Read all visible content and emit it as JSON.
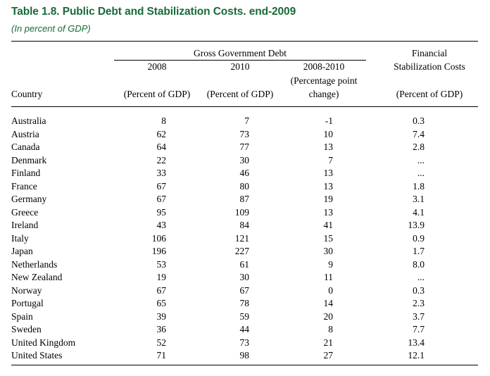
{
  "title": "Table 1.8. Public Debt and Stabilization Costs. end-2009",
  "subtitle": "(In percent of GDP)",
  "header": {
    "group_label": "Gross Government Debt",
    "financial_line1": "Financial",
    "financial_line2": "Stabilization Costs",
    "col_2008": "2008",
    "col_2010": "2010",
    "col_change": "2008-2010",
    "change_unit_line1": "(Percentage point",
    "change_unit_line2": "change)",
    "country_label": "Country",
    "unit_2008": "(Percent of GDP)",
    "unit_2010": "(Percent of GDP)",
    "unit_fin": "(Percent of GDP)"
  },
  "rows": [
    {
      "country": "Australia",
      "d2008": "8",
      "d2010": "7",
      "change": "-1",
      "fin": "0.3"
    },
    {
      "country": "Austria",
      "d2008": "62",
      "d2010": "73",
      "change": "10",
      "fin": "7.4"
    },
    {
      "country": "Canada",
      "d2008": "64",
      "d2010": "77",
      "change": "13",
      "fin": "2.8"
    },
    {
      "country": "Denmark",
      "d2008": "22",
      "d2010": "30",
      "change": "7",
      "fin": "..."
    },
    {
      "country": "Finland",
      "d2008": "33",
      "d2010": "46",
      "change": "13",
      "fin": "..."
    },
    {
      "country": "France",
      "d2008": "67",
      "d2010": "80",
      "change": "13",
      "fin": "1.8"
    },
    {
      "country": "Germany",
      "d2008": "67",
      "d2010": "87",
      "change": "19",
      "fin": "3.1"
    },
    {
      "country": "Greece",
      "d2008": "95",
      "d2010": "109",
      "change": "13",
      "fin": "4.1"
    },
    {
      "country": "Ireland",
      "d2008": "43",
      "d2010": "84",
      "change": "41",
      "fin": "13.9"
    },
    {
      "country": "Italy",
      "d2008": "106",
      "d2010": "121",
      "change": "15",
      "fin": "0.9"
    },
    {
      "country": "Japan",
      "d2008": "196",
      "d2010": "227",
      "change": "30",
      "fin": "1.7"
    },
    {
      "country": "Netherlands",
      "d2008": "53",
      "d2010": "61",
      "change": "9",
      "fin": "8.0"
    },
    {
      "country": "New Zealand",
      "d2008": "19",
      "d2010": "30",
      "change": "11",
      "fin": "..."
    },
    {
      "country": "Norway",
      "d2008": "67",
      "d2010": "67",
      "change": "0",
      "fin": "0.3"
    },
    {
      "country": "Portugal",
      "d2008": "65",
      "d2010": "78",
      "change": "14",
      "fin": "2.3"
    },
    {
      "country": "Spain",
      "d2008": "39",
      "d2010": "59",
      "change": "20",
      "fin": "3.7"
    },
    {
      "country": "Sweden",
      "d2008": "36",
      "d2010": "44",
      "change": "8",
      "fin": "7.7"
    },
    {
      "country": "United Kingdom",
      "d2008": "52",
      "d2010": "73",
      "change": "21",
      "fin": "13.4"
    },
    {
      "country": "United States",
      "d2008": "71",
      "d2010": "98",
      "change": "27",
      "fin": "12.1"
    }
  ]
}
